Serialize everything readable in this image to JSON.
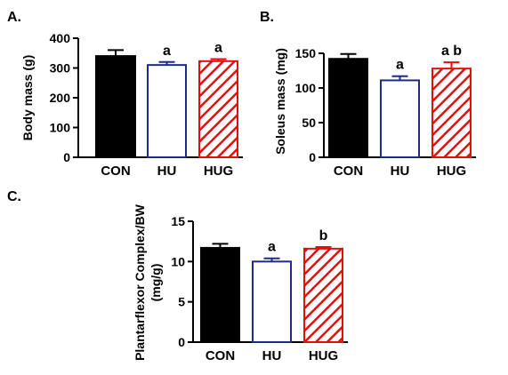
{
  "chart_data": [
    {
      "type": "bar",
      "panel": "A.",
      "title": "",
      "xlabel": "",
      "ylabel": "Body mass (g)",
      "ylim": [
        0,
        400
      ],
      "yticks": [
        0,
        100,
        200,
        300,
        400
      ],
      "categories": [
        "CON",
        "HU",
        "HUG"
      ],
      "values": [
        340,
        310,
        323
      ],
      "errors": [
        20,
        10,
        7
      ],
      "annotations": [
        "",
        "a",
        "a"
      ],
      "bar_styles": [
        {
          "fill": "solid",
          "color": "#000000"
        },
        {
          "fill": "empty",
          "color": "#1f2a8a"
        },
        {
          "fill": "hatched",
          "color": "#e01010"
        }
      ],
      "grid": false,
      "legend": "none"
    },
    {
      "type": "bar",
      "panel": "B.",
      "title": "",
      "xlabel": "",
      "ylabel": "Soleus mass (mg)",
      "ylim": [
        0,
        150
      ],
      "yticks": [
        0,
        50,
        100,
        150
      ],
      "categories": [
        "CON",
        "HU",
        "HUG"
      ],
      "values": [
        142,
        111,
        128
      ],
      "errors": [
        7,
        6,
        9
      ],
      "annotations": [
        "",
        "a",
        "a b"
      ],
      "bar_styles": [
        {
          "fill": "solid",
          "color": "#000000"
        },
        {
          "fill": "empty",
          "color": "#1f2a8a"
        },
        {
          "fill": "hatched",
          "color": "#e01010"
        }
      ],
      "grid": false,
      "legend": "none"
    },
    {
      "type": "bar",
      "panel": "C.",
      "title": "",
      "xlabel": "",
      "ylabel": [
        "Plantarflexor Complex/BW",
        "(mg/g)"
      ],
      "ylim": [
        0,
        15
      ],
      "yticks": [
        0,
        5,
        10,
        15
      ],
      "categories": [
        "CON",
        "HU",
        "HUG"
      ],
      "values": [
        11.7,
        10.0,
        11.6
      ],
      "errors": [
        0.5,
        0.4,
        0.2
      ],
      "annotations": [
        "",
        "a",
        "b"
      ],
      "bar_styles": [
        {
          "fill": "solid",
          "color": "#000000"
        },
        {
          "fill": "empty",
          "color": "#1f2a8a"
        },
        {
          "fill": "hatched",
          "color": "#e01010"
        }
      ],
      "grid": false,
      "legend": "none"
    }
  ]
}
